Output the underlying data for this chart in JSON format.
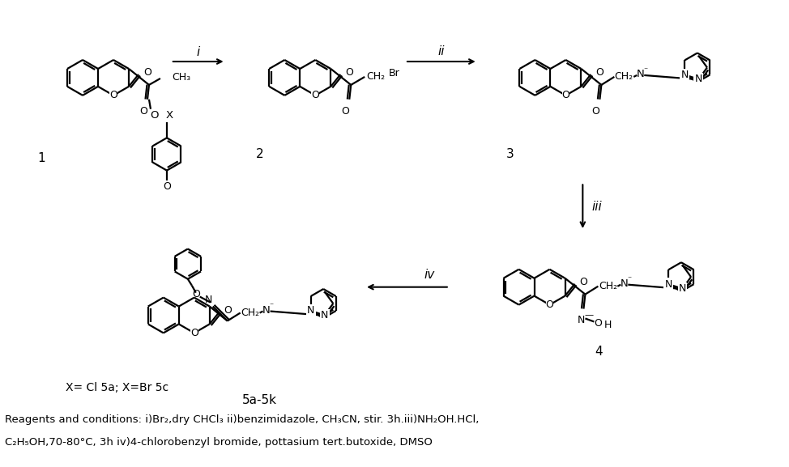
{
  "bg": "#ffffff",
  "lw": 1.6,
  "r": 22,
  "footnote1": "X= Cl 5a; X=Br 5c",
  "reagents1": "Reagents and conditions: i)Br₂,dry CHCl₃ ii)benzimidazole, CH₃CN, stir. 3h.iii)NH₂OH.HCl,",
  "reagents2": "C₂H₅OH,70-80°C, 3h iv)4-chlorobenzyl bromide, pottasium tert.butoxide, DMSO"
}
